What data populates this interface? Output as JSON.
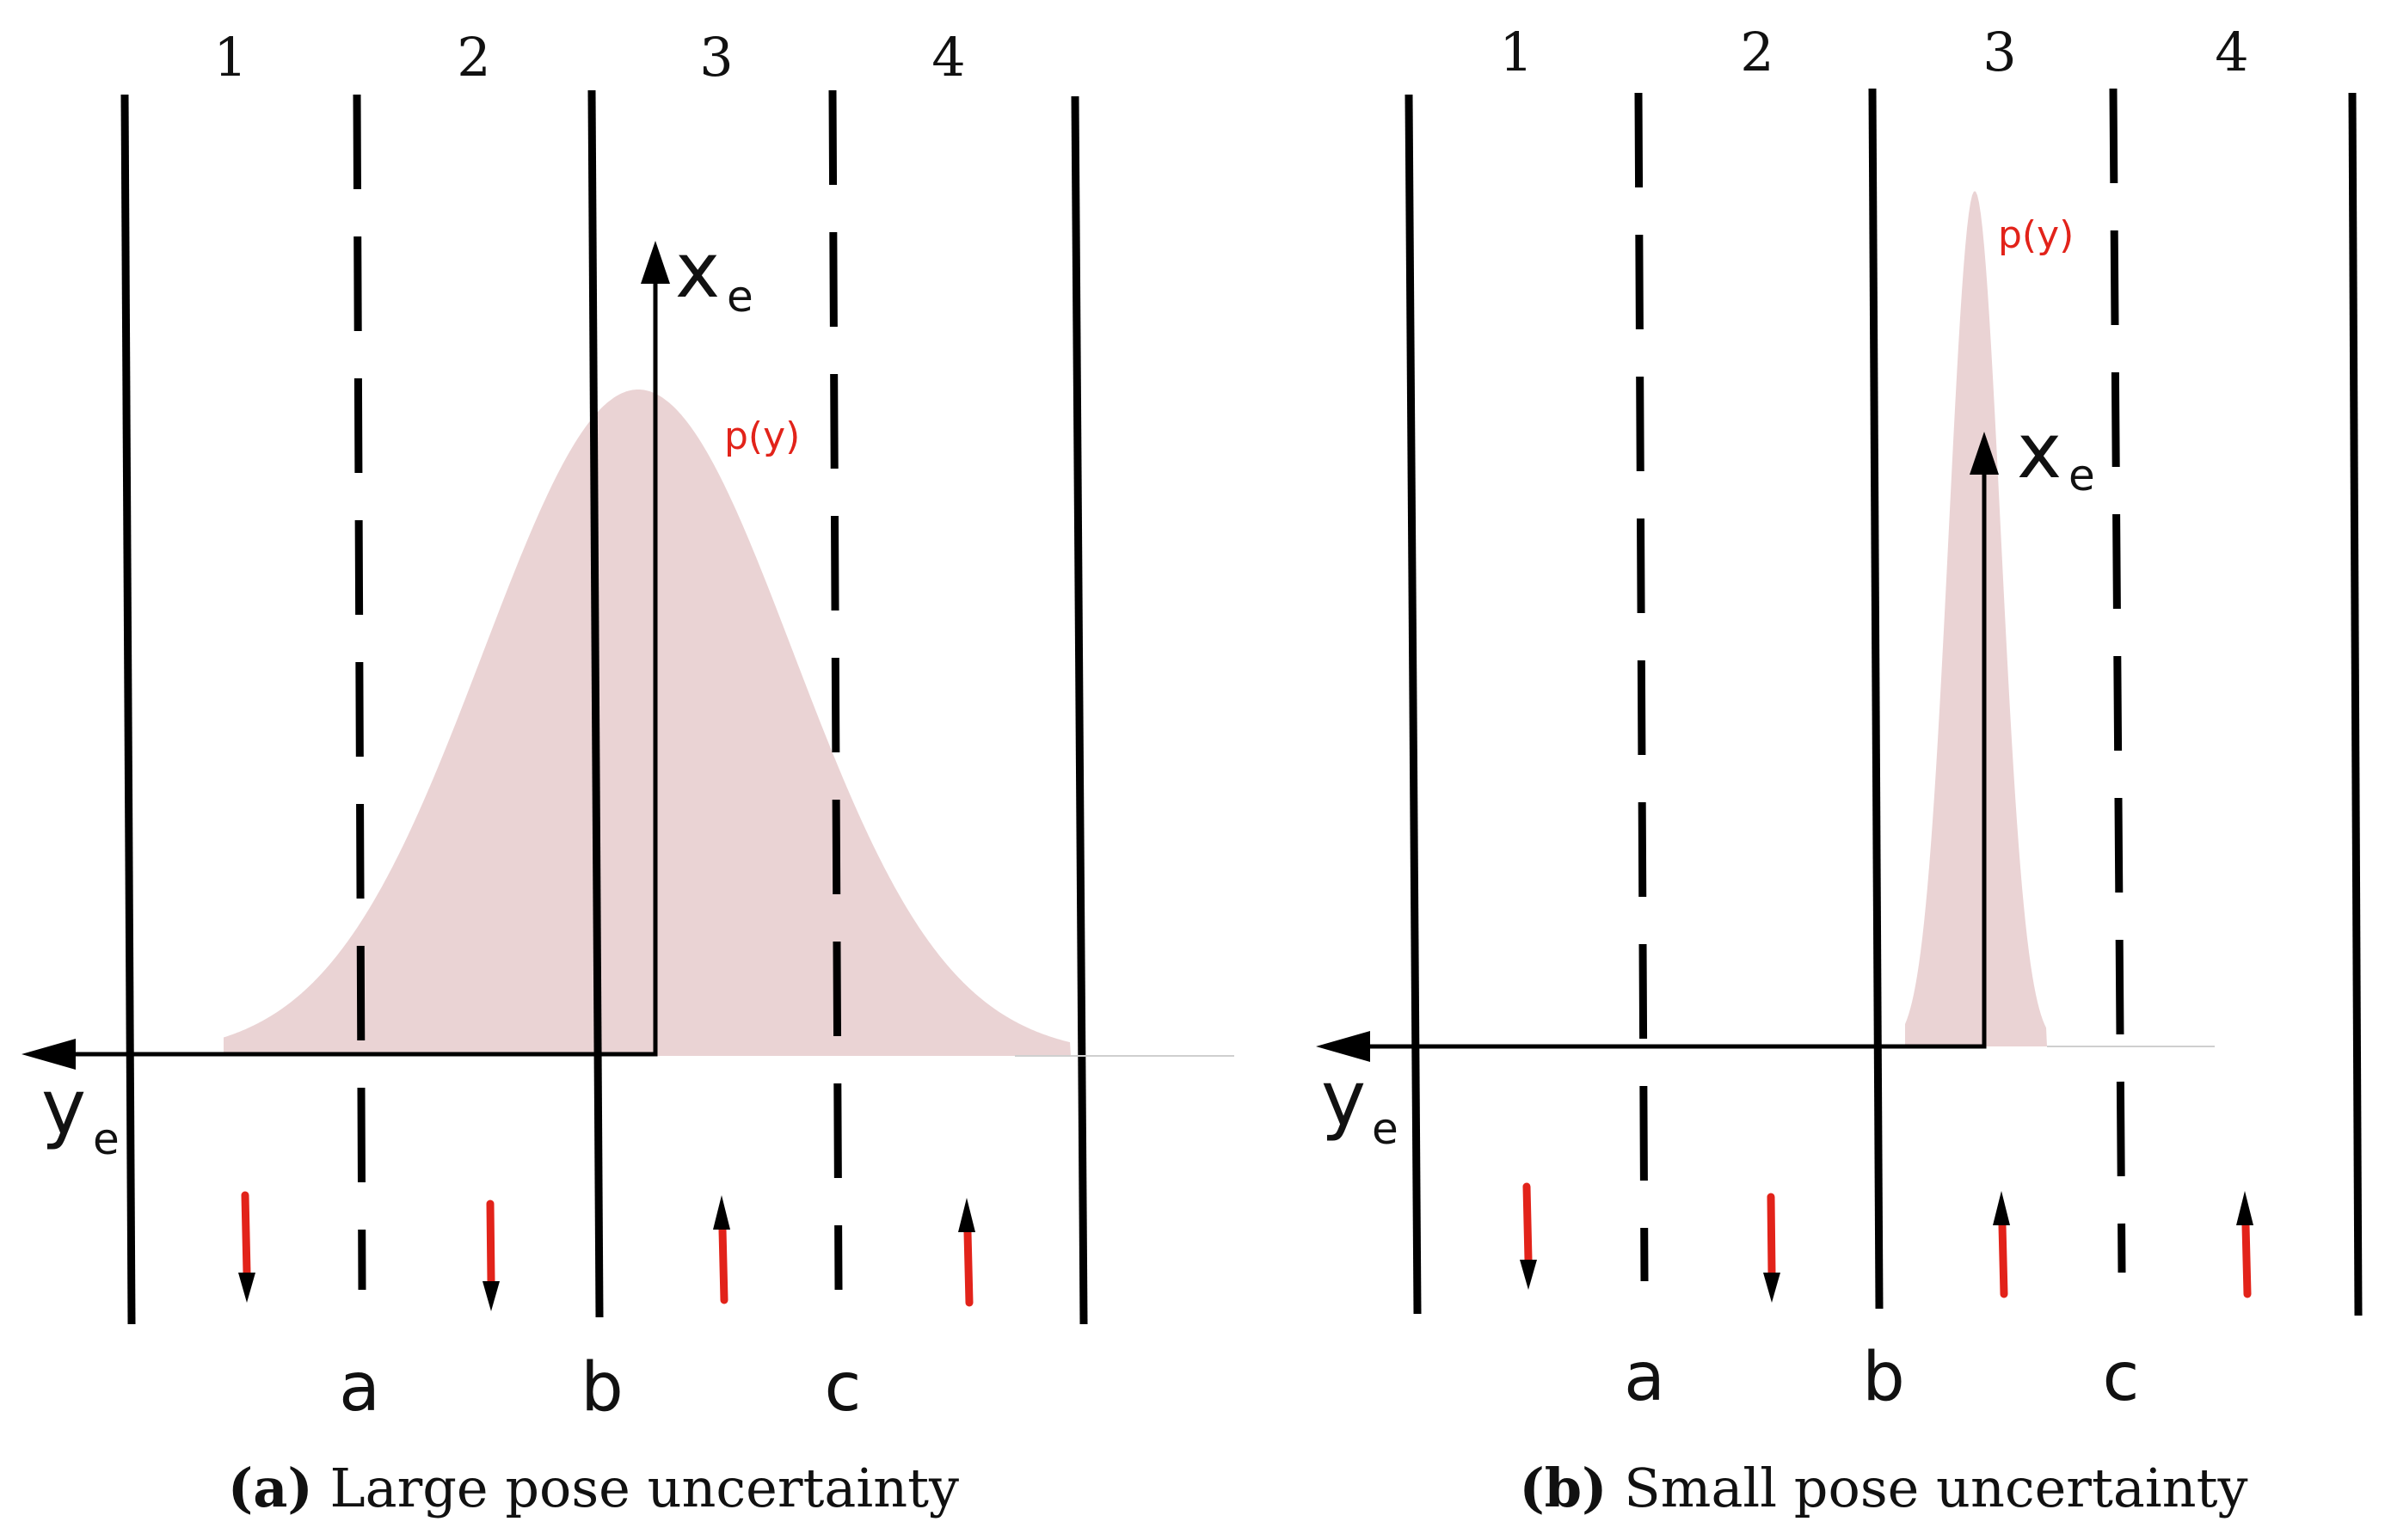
{
  "colors": {
    "distribution_fill": "#ead3d4",
    "arrow_red": "#e2231a",
    "line_black": "#000000"
  },
  "panels": [
    {
      "lane_numbers": [
        "1",
        "2",
        "3",
        "4"
      ],
      "boundary_labels": [
        "a",
        "b",
        "c"
      ],
      "axis_x_label": "x",
      "axis_x_sub": "e",
      "axis_y_label": "y",
      "axis_y_sub": "e",
      "dist_label": "p(y)",
      "caption_letter": "(a)",
      "caption_text": " Large pose uncertainty",
      "lane_arrow_directions": [
        "down",
        "down",
        "up",
        "up"
      ]
    },
    {
      "lane_numbers": [
        "1",
        "2",
        "3",
        "4"
      ],
      "boundary_labels": [
        "a",
        "b",
        "c"
      ],
      "axis_x_label": "x",
      "axis_x_sub": "e",
      "axis_y_label": "y",
      "axis_y_sub": "e",
      "dist_label": "p(y)",
      "caption_letter": "(b)",
      "caption_text": " Small pose uncertainty",
      "lane_arrow_directions": [
        "down",
        "down",
        "up",
        "up"
      ]
    }
  ]
}
